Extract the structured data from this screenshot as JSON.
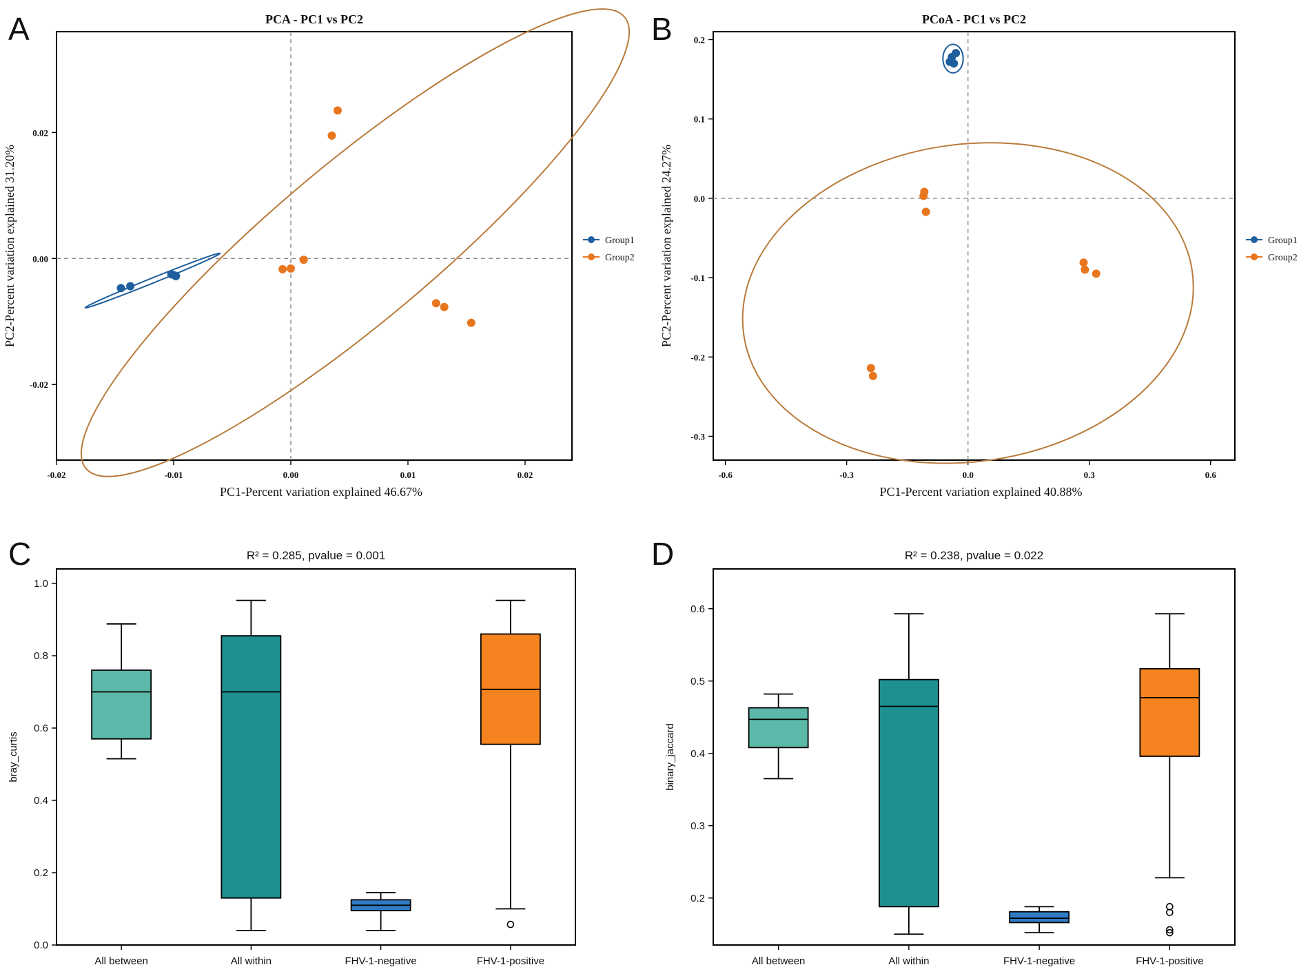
{
  "panels": {
    "A": "A",
    "B": "B",
    "C": "C",
    "D": "D"
  },
  "colors": {
    "group1": "#1f5f9e",
    "group2": "#e8761f",
    "ellipse2": "#b87a3a",
    "all_between": "#5cb8a8",
    "all_within": "#1e9090",
    "negative": "#2f7cc4",
    "positive": "#f58320"
  },
  "chart_data": [
    {
      "type": "scatter",
      "title": "PCA - PC1 vs PC2",
      "xlabel": "PC1-Percent variation explained 46.67%",
      "ylabel": "PC2-Percent variation explained 31.20%",
      "xlim": [
        -0.02,
        0.024
      ],
      "ylim": [
        -0.032,
        0.036
      ],
      "xticks": [
        -0.02,
        -0.01,
        0.0,
        0.01,
        0.02
      ],
      "xtick_labels": [
        "-0.02",
        "-0.01",
        "0.00",
        "0.01",
        "0.02"
      ],
      "yticks": [
        -0.02,
        0.0,
        0.02
      ],
      "ytick_labels": [
        "-0.02",
        "0.00",
        "0.02"
      ],
      "legend": [
        "Group1",
        "Group2"
      ],
      "legend_position": "right",
      "series": [
        {
          "name": "Group1",
          "color_key": "group1",
          "points": [
            [
              -0.0145,
              -0.0047
            ],
            [
              -0.0137,
              -0.0044
            ],
            [
              -0.0102,
              -0.0025
            ],
            [
              -0.0099,
              -0.0027
            ],
            [
              -0.0098,
              -0.0028
            ]
          ],
          "ellipse": {
            "cx": -0.0118,
            "cy": -0.0035,
            "rx": 0.0062,
            "ry": 0.0004,
            "angle_deg": 22
          }
        },
        {
          "name": "Group2",
          "color_key": "group2",
          "points": [
            [
              0.0035,
              0.0195
            ],
            [
              0.004,
              0.0235
            ],
            [
              -0.0007,
              -0.0017
            ],
            [
              0.0,
              -0.0016
            ],
            [
              0.0011,
              -0.0002
            ],
            [
              0.0124,
              -0.0071
            ],
            [
              0.0131,
              -0.0077
            ],
            [
              0.0154,
              -0.0102
            ]
          ],
          "ellipse": {
            "cx": 0.0055,
            "cy": 0.0025,
            "rx": 0.03,
            "ry": 0.0125,
            "angle_deg": 40
          }
        }
      ]
    },
    {
      "type": "scatter",
      "title": "PCoA - PC1 vs PC2",
      "xlabel": "PC1-Percent variation explained 40.88%",
      "ylabel": "PC2-Percent variation explained 24.27%",
      "xlim": [
        -0.63,
        0.66
      ],
      "ylim": [
        -0.33,
        0.21
      ],
      "xticks": [
        -0.6,
        -0.3,
        0.0,
        0.3,
        0.6
      ],
      "xtick_labels": [
        "-0.6",
        "-0.3",
        "0.0",
        "0.3",
        "0.6"
      ],
      "yticks": [
        -0.3,
        -0.2,
        -0.1,
        0.0,
        0.1,
        0.2
      ],
      "ytick_labels": [
        "-0.3",
        "-0.2",
        "-0.1",
        "0.0",
        "0.1",
        "0.2"
      ],
      "legend": [
        "Group1",
        "Group2"
      ],
      "legend_position": "right",
      "series": [
        {
          "name": "Group1",
          "color_key": "group1",
          "points": [
            [
              -0.04,
              0.178
            ],
            [
              -0.035,
              0.17
            ],
            [
              -0.045,
              0.172
            ],
            [
              -0.03,
              0.183
            ]
          ],
          "ellipse": {
            "cx": -0.037,
            "cy": 0.176,
            "rx": 0.025,
            "ry": 0.018,
            "angle_deg": 0
          }
        },
        {
          "name": "Group2",
          "color_key": "group2",
          "points": [
            [
              -0.108,
              0.008
            ],
            [
              -0.11,
              0.003
            ],
            [
              -0.104,
              -0.017
            ],
            [
              -0.24,
              -0.214
            ],
            [
              -0.235,
              -0.224
            ],
            [
              0.286,
              -0.081
            ],
            [
              0.289,
              -0.09
            ],
            [
              0.317,
              -0.095
            ]
          ],
          "ellipse": {
            "cx": 0.0,
            "cy": -0.132,
            "rx": 0.56,
            "ry": 0.2,
            "angle_deg": 8
          }
        }
      ]
    },
    {
      "type": "box",
      "title": "R² = 0.285, pvalue = 0.001",
      "ylabel": "bray_curtis",
      "xlabel": "",
      "ylim": [
        0.0,
        1.04
      ],
      "yticks": [
        0.0,
        0.2,
        0.4,
        0.6,
        0.8,
        1.0
      ],
      "ytick_labels": [
        "0.0",
        "0.2",
        "0.4",
        "0.6",
        "0.8",
        "1.0"
      ],
      "categories": [
        "All between",
        "All within",
        "FHV-1-negative",
        "FHV-1-positive"
      ],
      "boxes": [
        {
          "name": "All between",
          "color_key": "all_between",
          "whislo": 0.515,
          "q1": 0.57,
          "med": 0.7,
          "q3": 0.76,
          "whishi": 0.888,
          "fliers": []
        },
        {
          "name": "All within",
          "color_key": "all_within",
          "whislo": 0.04,
          "q1": 0.13,
          "med": 0.7,
          "q3": 0.855,
          "whishi": 0.953,
          "fliers": []
        },
        {
          "name": "FHV-1-negative",
          "color_key": "negative",
          "whislo": 0.04,
          "q1": 0.095,
          "med": 0.11,
          "q3": 0.125,
          "whishi": 0.145,
          "fliers": []
        },
        {
          "name": "FHV-1-positive",
          "color_key": "positive",
          "whislo": 0.1,
          "q1": 0.555,
          "med": 0.707,
          "q3": 0.86,
          "whishi": 0.953,
          "fliers": [
            0.057
          ]
        }
      ]
    },
    {
      "type": "box",
      "title": "R² = 0.238, pvalue = 0.022",
      "ylabel": "binary_jaccard",
      "xlabel": "",
      "ylim": [
        0.135,
        0.655
      ],
      "yticks": [
        0.2,
        0.3,
        0.4,
        0.5,
        0.6
      ],
      "ytick_labels": [
        "0.2",
        "0.3",
        "0.4",
        "0.5",
        "0.6"
      ],
      "categories": [
        "All between",
        "All within",
        "FHV-1-negative",
        "FHV-1-positive"
      ],
      "boxes": [
        {
          "name": "All between",
          "color_key": "all_between",
          "whislo": 0.365,
          "q1": 0.408,
          "med": 0.447,
          "q3": 0.463,
          "whishi": 0.482,
          "fliers": []
        },
        {
          "name": "All within",
          "color_key": "all_within",
          "whislo": 0.15,
          "q1": 0.188,
          "med": 0.465,
          "q3": 0.502,
          "whishi": 0.593,
          "fliers": []
        },
        {
          "name": "FHV-1-negative",
          "color_key": "negative",
          "whislo": 0.152,
          "q1": 0.166,
          "med": 0.172,
          "q3": 0.181,
          "whishi": 0.188,
          "fliers": []
        },
        {
          "name": "FHV-1-positive",
          "color_key": "positive",
          "whislo": 0.228,
          "q1": 0.396,
          "med": 0.477,
          "q3": 0.517,
          "whishi": 0.593,
          "fliers": [
            0.18,
            0.188,
            0.152,
            0.156
          ]
        }
      ]
    }
  ]
}
